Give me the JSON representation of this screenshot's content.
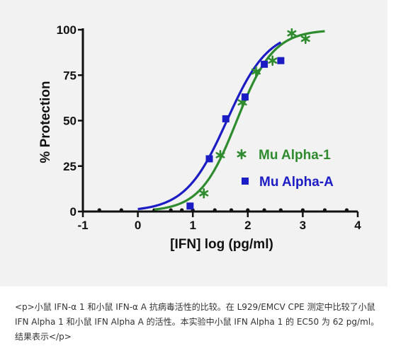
{
  "chart_data": {
    "type": "scatter",
    "title": "",
    "xlabel": "[IFN] log (pg/ml)",
    "ylabel": "% Protection",
    "xlim": [
      -1,
      4
    ],
    "ylim": [
      0,
      100
    ],
    "x_ticks": [
      "-1",
      "0",
      "1",
      "2",
      "3",
      "4"
    ],
    "y_ticks": [
      "0",
      "25",
      "50",
      "75",
      "100"
    ],
    "legend_placement": "right",
    "grid": false,
    "series": [
      {
        "name": "Mu Alpha-1",
        "color": "#2e8b2e",
        "marker": "asterisk",
        "points": [
          {
            "x": 1.2,
            "y": 10
          },
          {
            "x": 1.5,
            "y": 31
          },
          {
            "x": 1.9,
            "y": 60
          },
          {
            "x": 2.15,
            "y": 77
          },
          {
            "x": 2.45,
            "y": 83
          },
          {
            "x": 2.8,
            "y": 98
          },
          {
            "x": 3.05,
            "y": 95
          }
        ],
        "fit": {
          "bottom": 0,
          "top": 100,
          "logEC50": 1.8,
          "hill": 1.3,
          "x_range": [
            0.3,
            3.4
          ]
        }
      },
      {
        "name": "Mu Alpha-A",
        "color": "#1c1cc4",
        "marker": "square",
        "points": [
          {
            "x": 0.95,
            "y": 3
          },
          {
            "x": 1.3,
            "y": 29
          },
          {
            "x": 1.6,
            "y": 51
          },
          {
            "x": 1.95,
            "y": 63
          },
          {
            "x": 2.3,
            "y": 81
          },
          {
            "x": 2.6,
            "y": 83
          }
        ],
        "fit": {
          "bottom": 0,
          "top": 100,
          "logEC50": 1.62,
          "hill": 1.15,
          "x_range": [
            0.0,
            2.6
          ]
        }
      }
    ],
    "baseline_markers": [
      -0.7,
      -0.3,
      0.3,
      0.6,
      0.8,
      1.0,
      1.4,
      1.7,
      2.0,
      2.3,
      2.6,
      3.0,
      3.4,
      3.8
    ]
  },
  "caption": "<p>小鼠 IFN-α 1 和小鼠 IFN-α A 抗病毒活性的比较。在 L929/EMCV CPE 测定中比较了小鼠 IFN Alpha 1 和小鼠 IFN Alpha A 的活性。本实验中小鼠 IFN Alpha 1 的 EC50 为 62 pg/ml。结果表示</p>"
}
